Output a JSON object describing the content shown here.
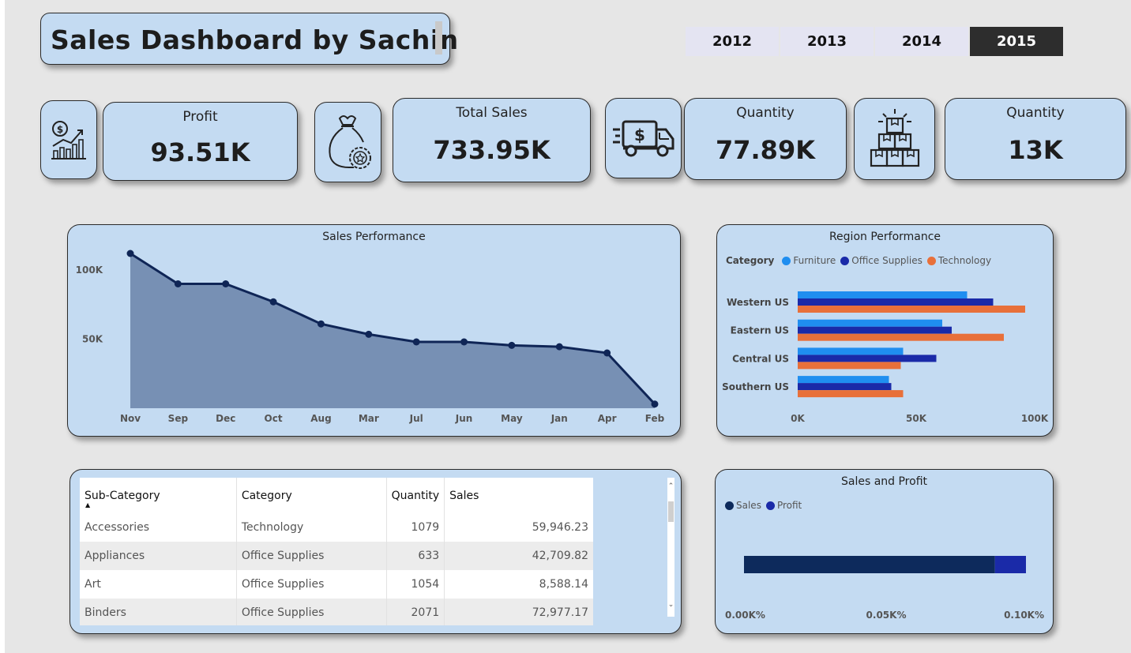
{
  "dashboard": {
    "title": "Sales Dashboard by Sachin"
  },
  "years": [
    "2012",
    "2013",
    "2014",
    "2015"
  ],
  "active_year": "2015",
  "kpis": {
    "profit": {
      "label": "Profit",
      "value": "93.51K",
      "icon": "money-growth-chart-icon"
    },
    "total_sales": {
      "label": "Total Sales",
      "value": "733.95K",
      "icon": "money-bag-icon"
    },
    "quantity_1": {
      "label": "Quantity",
      "value": "77.89K",
      "icon": "delivery-truck-icon"
    },
    "quantity_2": {
      "label": "Quantity",
      "value": "13K",
      "icon": "stacked-boxes-icon"
    }
  },
  "sales_performance": {
    "title": "Sales Performance",
    "chart_data": {
      "type": "area",
      "categories": [
        "Nov",
        "Sep",
        "Dec",
        "Oct",
        "Aug",
        "Mar",
        "Jul",
        "Jun",
        "May",
        "Jan",
        "Apr",
        "Feb"
      ],
      "values": [
        112000,
        90000,
        90000,
        77000,
        61000,
        53500,
        48000,
        48000,
        45500,
        44500,
        40000,
        3000
      ],
      "y_ticks": [
        "100K",
        "50K"
      ],
      "ylim": [
        0,
        120000
      ],
      "grid": false
    }
  },
  "region_performance": {
    "title": "Region Performance",
    "legend_title": "Category",
    "chart_data": {
      "type": "bar",
      "orientation": "horizontal",
      "categories": [
        "Western US",
        "Eastern US",
        "Central US",
        "Southern US"
      ],
      "series": [
        {
          "name": "Furniture",
          "color": "#1f8ef0",
          "values": [
            71500,
            61000,
            44500,
            38500
          ]
        },
        {
          "name": "Office Supplies",
          "color": "#1a2aa8",
          "values": [
            82500,
            65000,
            58500,
            39500
          ]
        },
        {
          "name": "Technology",
          "color": "#e8703a",
          "values": [
            96000,
            87000,
            43500,
            44500
          ]
        }
      ],
      "x_ticks": [
        "0K",
        "50K",
        "100K"
      ],
      "xlim": [
        0,
        100000
      ],
      "legend_position": "top-left"
    }
  },
  "table": {
    "columns": [
      "Sub-Category",
      "Category",
      "Quantity",
      "Sales"
    ],
    "rows": [
      [
        "Accessories",
        "Technology",
        "1079",
        "59,946.23"
      ],
      [
        "Appliances",
        "Office Supplies",
        "633",
        "42,709.82"
      ],
      [
        "Art",
        "Office Supplies",
        "1054",
        "8,588.14"
      ],
      [
        "Binders",
        "Office Supplies",
        "2071",
        "72,977.17"
      ]
    ],
    "sort_indicator": "▲"
  },
  "sales_and_profit": {
    "title": "Sales and Profit",
    "chart_data": {
      "type": "bar",
      "orientation": "horizontal",
      "stacked": true,
      "series": [
        {
          "name": "Sales",
          "color": "#0d2a5c",
          "values": [
            0.089
          ]
        },
        {
          "name": "Profit",
          "color": "#1a2aa8",
          "values": [
            0.011
          ]
        }
      ],
      "x_ticks": [
        "0.00K%",
        "0.05K%",
        "0.10K%"
      ],
      "xlim": [
        0,
        0.1
      ],
      "legend_position": "top-left"
    }
  }
}
